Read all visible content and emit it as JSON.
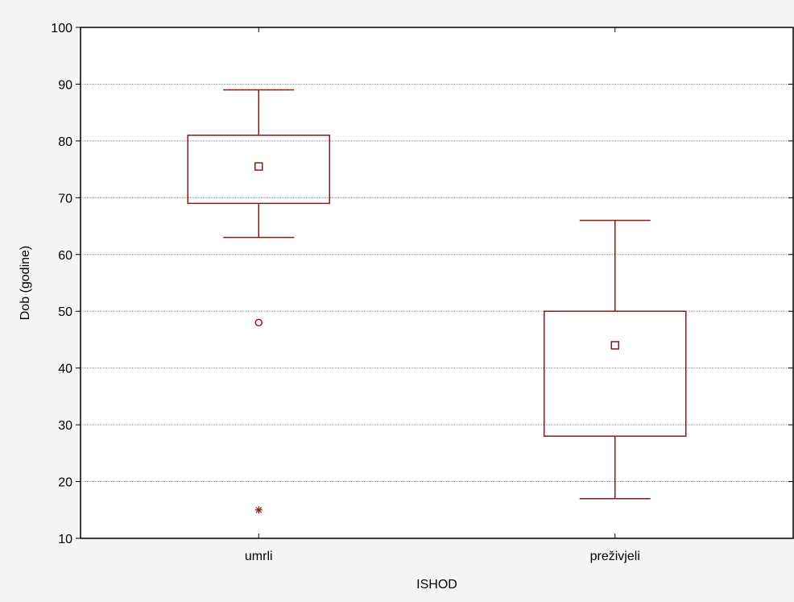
{
  "chart_data": {
    "type": "boxplot",
    "title": "",
    "xlabel": "ISHOD",
    "ylabel": "Dob (godine)",
    "ylim": [
      10,
      100
    ],
    "yticks": [
      10,
      20,
      30,
      40,
      50,
      60,
      70,
      80,
      90,
      100
    ],
    "grid": "horizontal",
    "colors": {
      "box": "#8b1a1a",
      "grid": "#9a9a9a",
      "frame": "#000000",
      "plot_bg": "#ffffff"
    },
    "categories": [
      "umrli",
      "preživjeli"
    ],
    "boxes": [
      {
        "category": "umrli",
        "whisker_low": 63,
        "q1": 69,
        "center": 75.5,
        "q3": 81,
        "whisker_high": 89,
        "outliers": [
          48
        ],
        "extremes": [
          15
        ]
      },
      {
        "category": "preživjeli",
        "whisker_low": 17,
        "q1": 28,
        "center": 44,
        "q3": 50,
        "whisker_high": 66,
        "outliers": [],
        "extremes": []
      }
    ]
  }
}
